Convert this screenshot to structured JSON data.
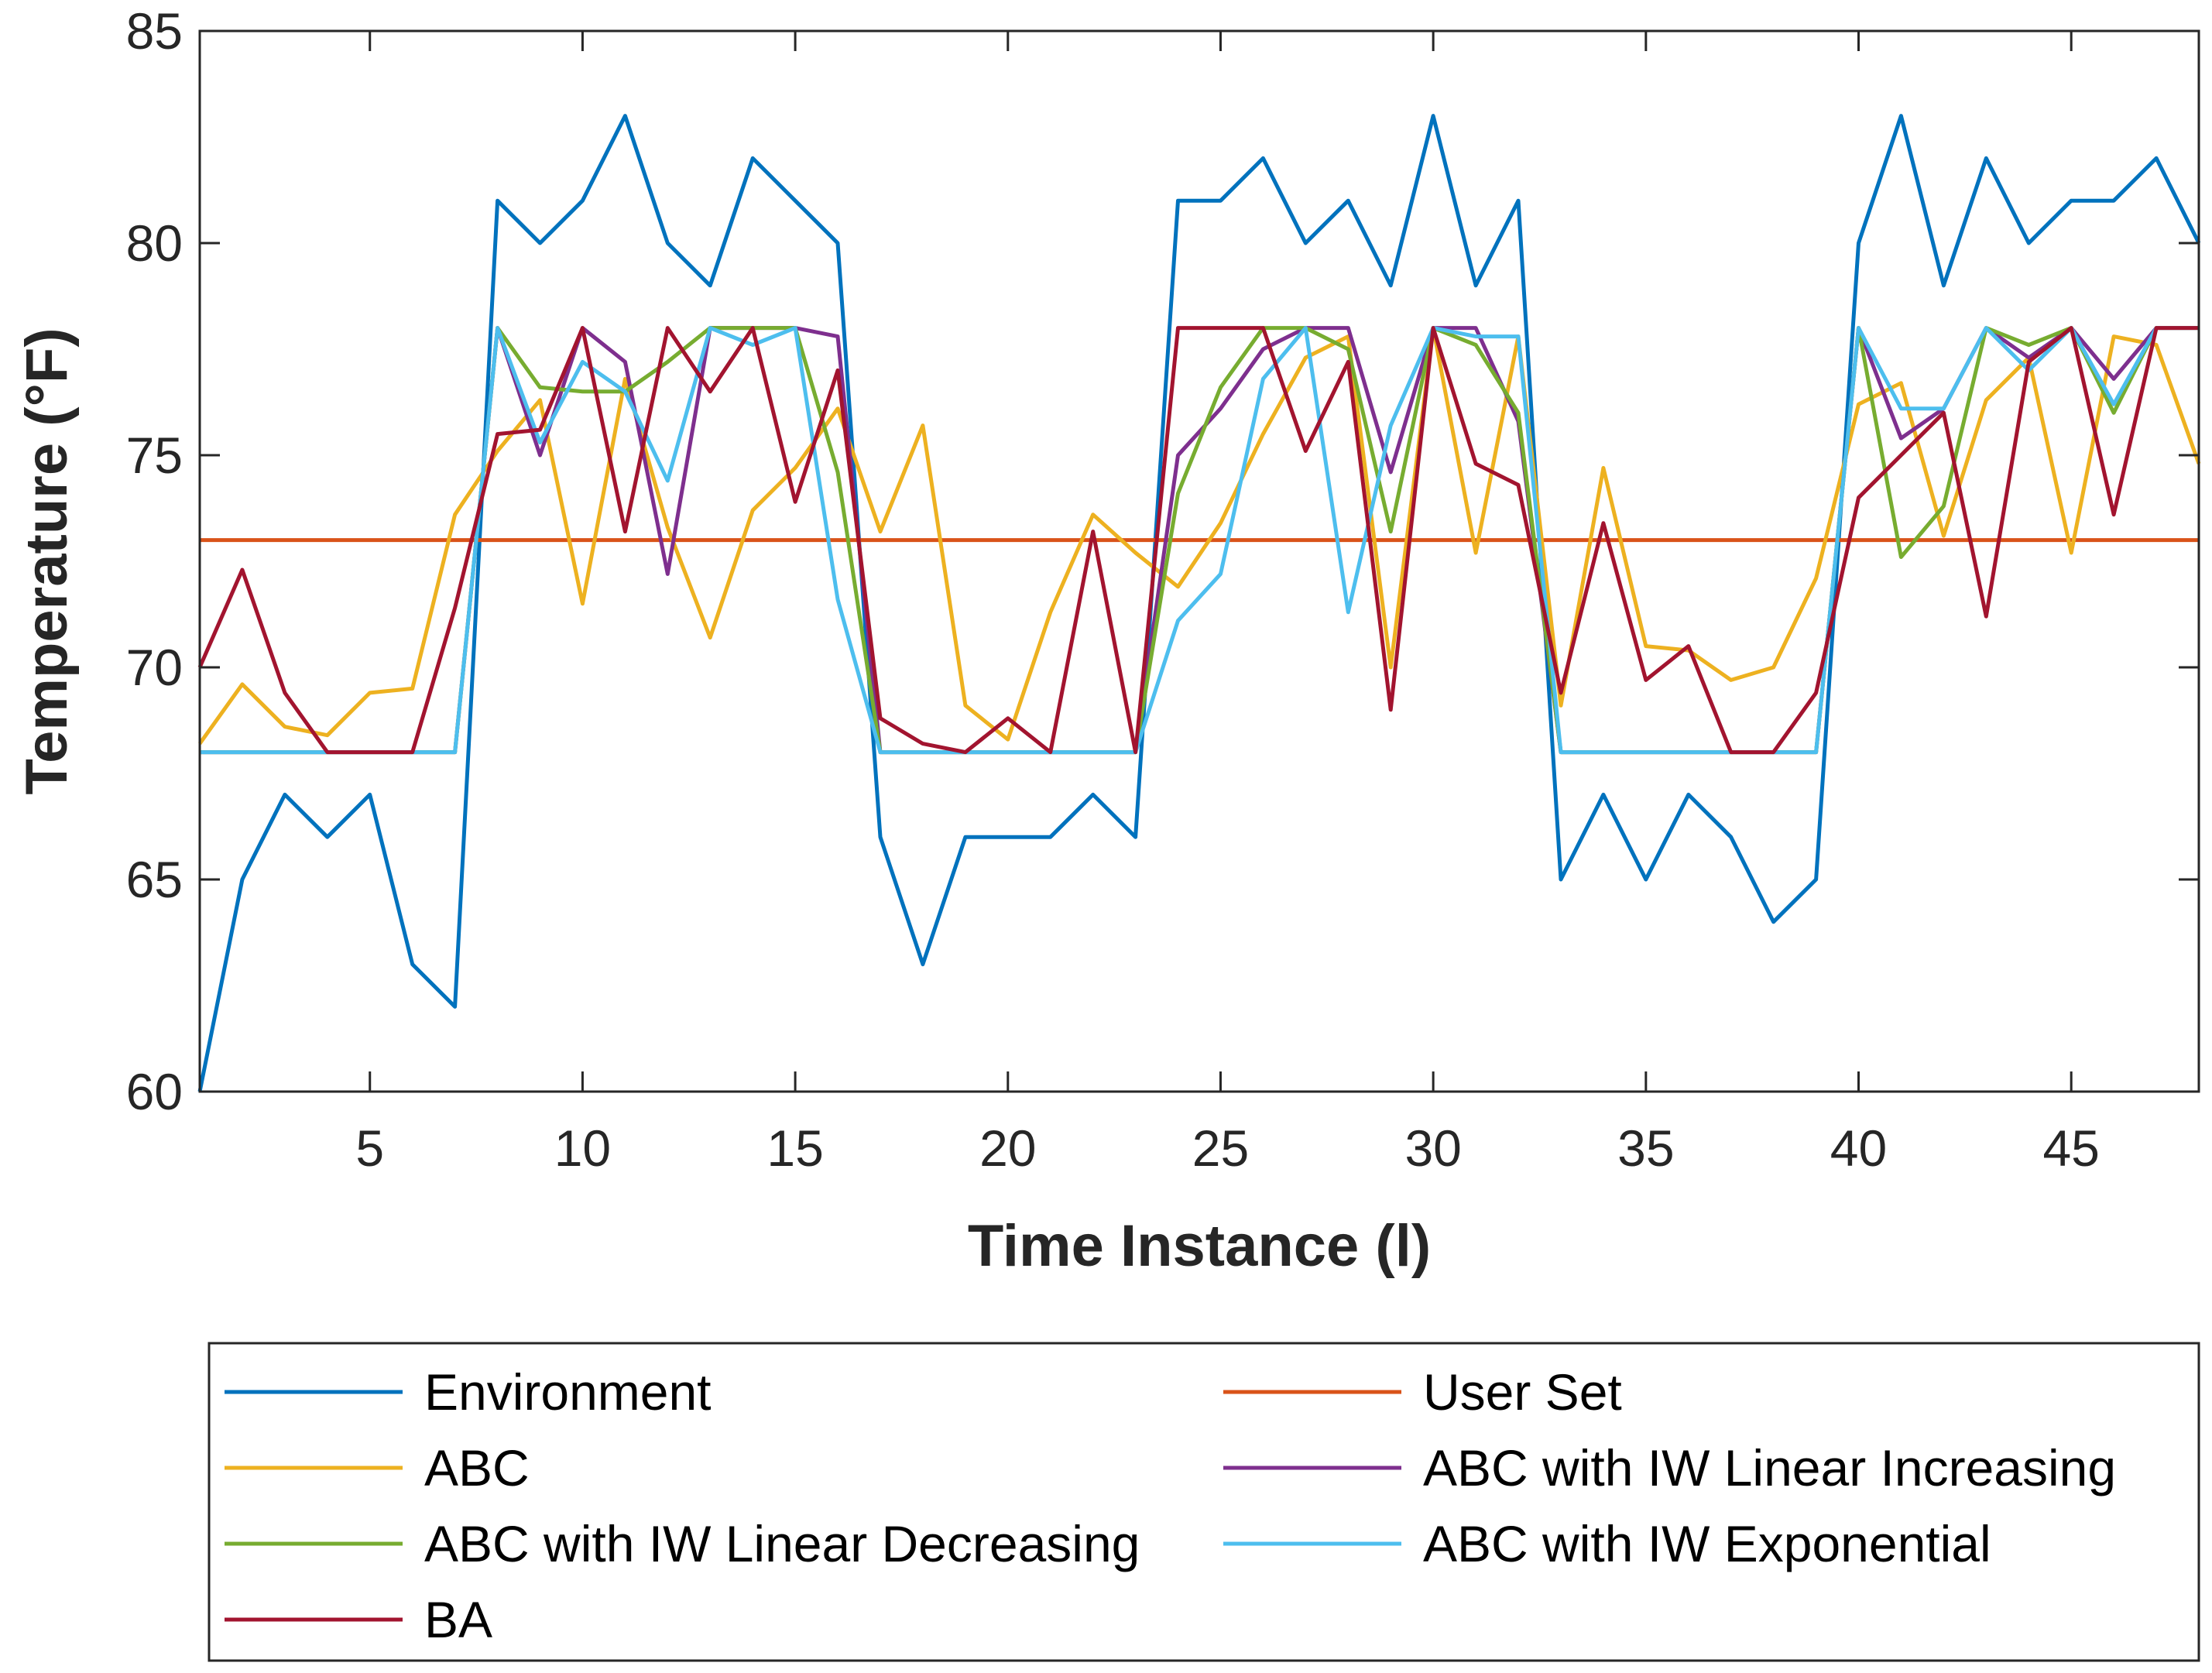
{
  "chart_data": {
    "type": "line",
    "title": "",
    "xlabel": "Time Instance (l)",
    "ylabel": "Temperature (°F)",
    "xlim": [
      1,
      48
    ],
    "ylim": [
      60,
      85
    ],
    "xticks": [
      5,
      10,
      15,
      20,
      25,
      30,
      35,
      40,
      45
    ],
    "yticks": [
      60,
      65,
      70,
      75,
      80,
      85
    ],
    "grid": false,
    "legend_position": "below",
    "x": [
      1,
      2,
      3,
      4,
      5,
      6,
      7,
      8,
      9,
      10,
      11,
      12,
      13,
      14,
      15,
      16,
      17,
      18,
      19,
      20,
      21,
      22,
      23,
      24,
      25,
      26,
      27,
      28,
      29,
      30,
      31,
      32,
      33,
      34,
      35,
      36,
      37,
      38,
      39,
      40,
      41,
      42,
      43,
      44,
      45,
      46,
      47,
      48
    ],
    "series": [
      {
        "name": "Environment",
        "color": "#0072BD",
        "values": [
          60,
          65,
          67,
          66,
          67,
          63,
          62,
          81,
          80,
          81,
          83,
          80,
          79,
          82,
          81,
          80,
          66,
          63,
          66,
          66,
          66,
          67,
          66,
          81,
          81,
          82,
          80,
          81,
          79,
          83,
          79,
          81,
          65,
          67,
          65,
          67,
          66,
          64,
          65,
          80,
          83,
          79,
          82,
          80,
          81,
          81,
          82,
          80
        ]
      },
      {
        "name": "User Set",
        "color": "#D95319",
        "values": [
          73,
          73,
          73,
          73,
          73,
          73,
          73,
          73,
          73,
          73,
          73,
          73,
          73,
          73,
          73,
          73,
          73,
          73,
          73,
          73,
          73,
          73,
          73,
          73,
          73,
          73,
          73,
          73,
          73,
          73,
          73,
          73,
          73,
          73,
          73,
          73,
          73,
          73,
          73,
          73,
          73,
          73,
          73,
          73,
          73,
          73,
          73,
          73
        ]
      },
      {
        "name": "ABC",
        "color": "#EDB120",
        "values": [
          68.2,
          69.6,
          68.6,
          68.4,
          69.4,
          69.5,
          73.6,
          75.1,
          76.3,
          71.5,
          76.8,
          73.3,
          70.7,
          73.7,
          74.7,
          76.1,
          73.2,
          75.7,
          69.1,
          68.3,
          71.3,
          73.6,
          72.7,
          71.9,
          73.4,
          75.5,
          77.3,
          77.8,
          70.0,
          78.0,
          72.7,
          77.8,
          69.1,
          74.7,
          70.5,
          70.4,
          69.7,
          70.0,
          72.1,
          76.2,
          76.7,
          73.1,
          76.3,
          77.3,
          72.7,
          77.8,
          77.6,
          74.8
        ]
      },
      {
        "name": "ABC with IW Linear Increasing",
        "color": "#7E2F8E",
        "values": [
          68,
          68,
          68,
          68,
          68,
          68,
          68,
          78,
          75.0,
          78,
          77.2,
          72.2,
          78,
          78,
          78,
          77.8,
          68,
          68,
          68,
          68,
          68,
          68,
          68,
          75.0,
          76.1,
          77.5,
          78,
          78,
          74.6,
          78,
          78,
          75.8,
          68,
          68,
          68,
          68,
          68,
          68,
          68,
          78,
          75.4,
          76.1,
          78,
          77.3,
          78,
          76.8,
          78,
          78
        ]
      },
      {
        "name": "ABC with IW Linear Decreasing",
        "color": "#77AC30",
        "values": [
          68,
          68,
          68,
          68,
          68,
          68,
          68,
          78,
          76.6,
          76.5,
          76.5,
          77.2,
          78,
          78,
          78,
          74.6,
          68,
          68,
          68,
          68,
          68,
          68,
          68,
          74.1,
          76.6,
          78,
          78,
          77.5,
          73.2,
          78,
          77.6,
          76.0,
          68,
          68,
          68,
          68,
          68,
          68,
          68,
          78,
          72.6,
          73.8,
          78,
          77.6,
          78,
          76.0,
          78,
          78
        ]
      },
      {
        "name": "ABC with IW Exponential",
        "color": "#4DBEEE",
        "values": [
          68,
          68,
          68,
          68,
          68,
          68,
          68,
          78,
          75.3,
          77.2,
          76.5,
          74.4,
          78,
          77.6,
          78,
          71.6,
          68,
          68,
          68,
          68,
          68,
          68,
          68,
          71.1,
          72.2,
          76.8,
          78,
          71.3,
          75.7,
          78,
          77.8,
          77.8,
          68,
          68,
          68,
          68,
          68,
          68,
          68,
          78,
          76.1,
          76.1,
          78,
          77.0,
          78,
          76.2,
          78,
          78
        ]
      },
      {
        "name": "BA",
        "color": "#A2142F",
        "values": [
          70,
          72.3,
          69.4,
          68,
          68,
          68,
          71.4,
          75.5,
          75.6,
          78,
          73.2,
          78,
          76.5,
          78,
          73.9,
          77,
          68.8,
          68.2,
          68,
          68.8,
          68,
          73.2,
          68,
          78,
          78,
          78,
          75.1,
          77.2,
          69,
          78,
          74.8,
          74.3,
          69.4,
          73.4,
          69.7,
          70.5,
          68,
          68,
          69.4,
          74,
          75,
          76,
          71.2,
          77.2,
          78,
          73.6,
          78,
          78
        ]
      }
    ]
  }
}
